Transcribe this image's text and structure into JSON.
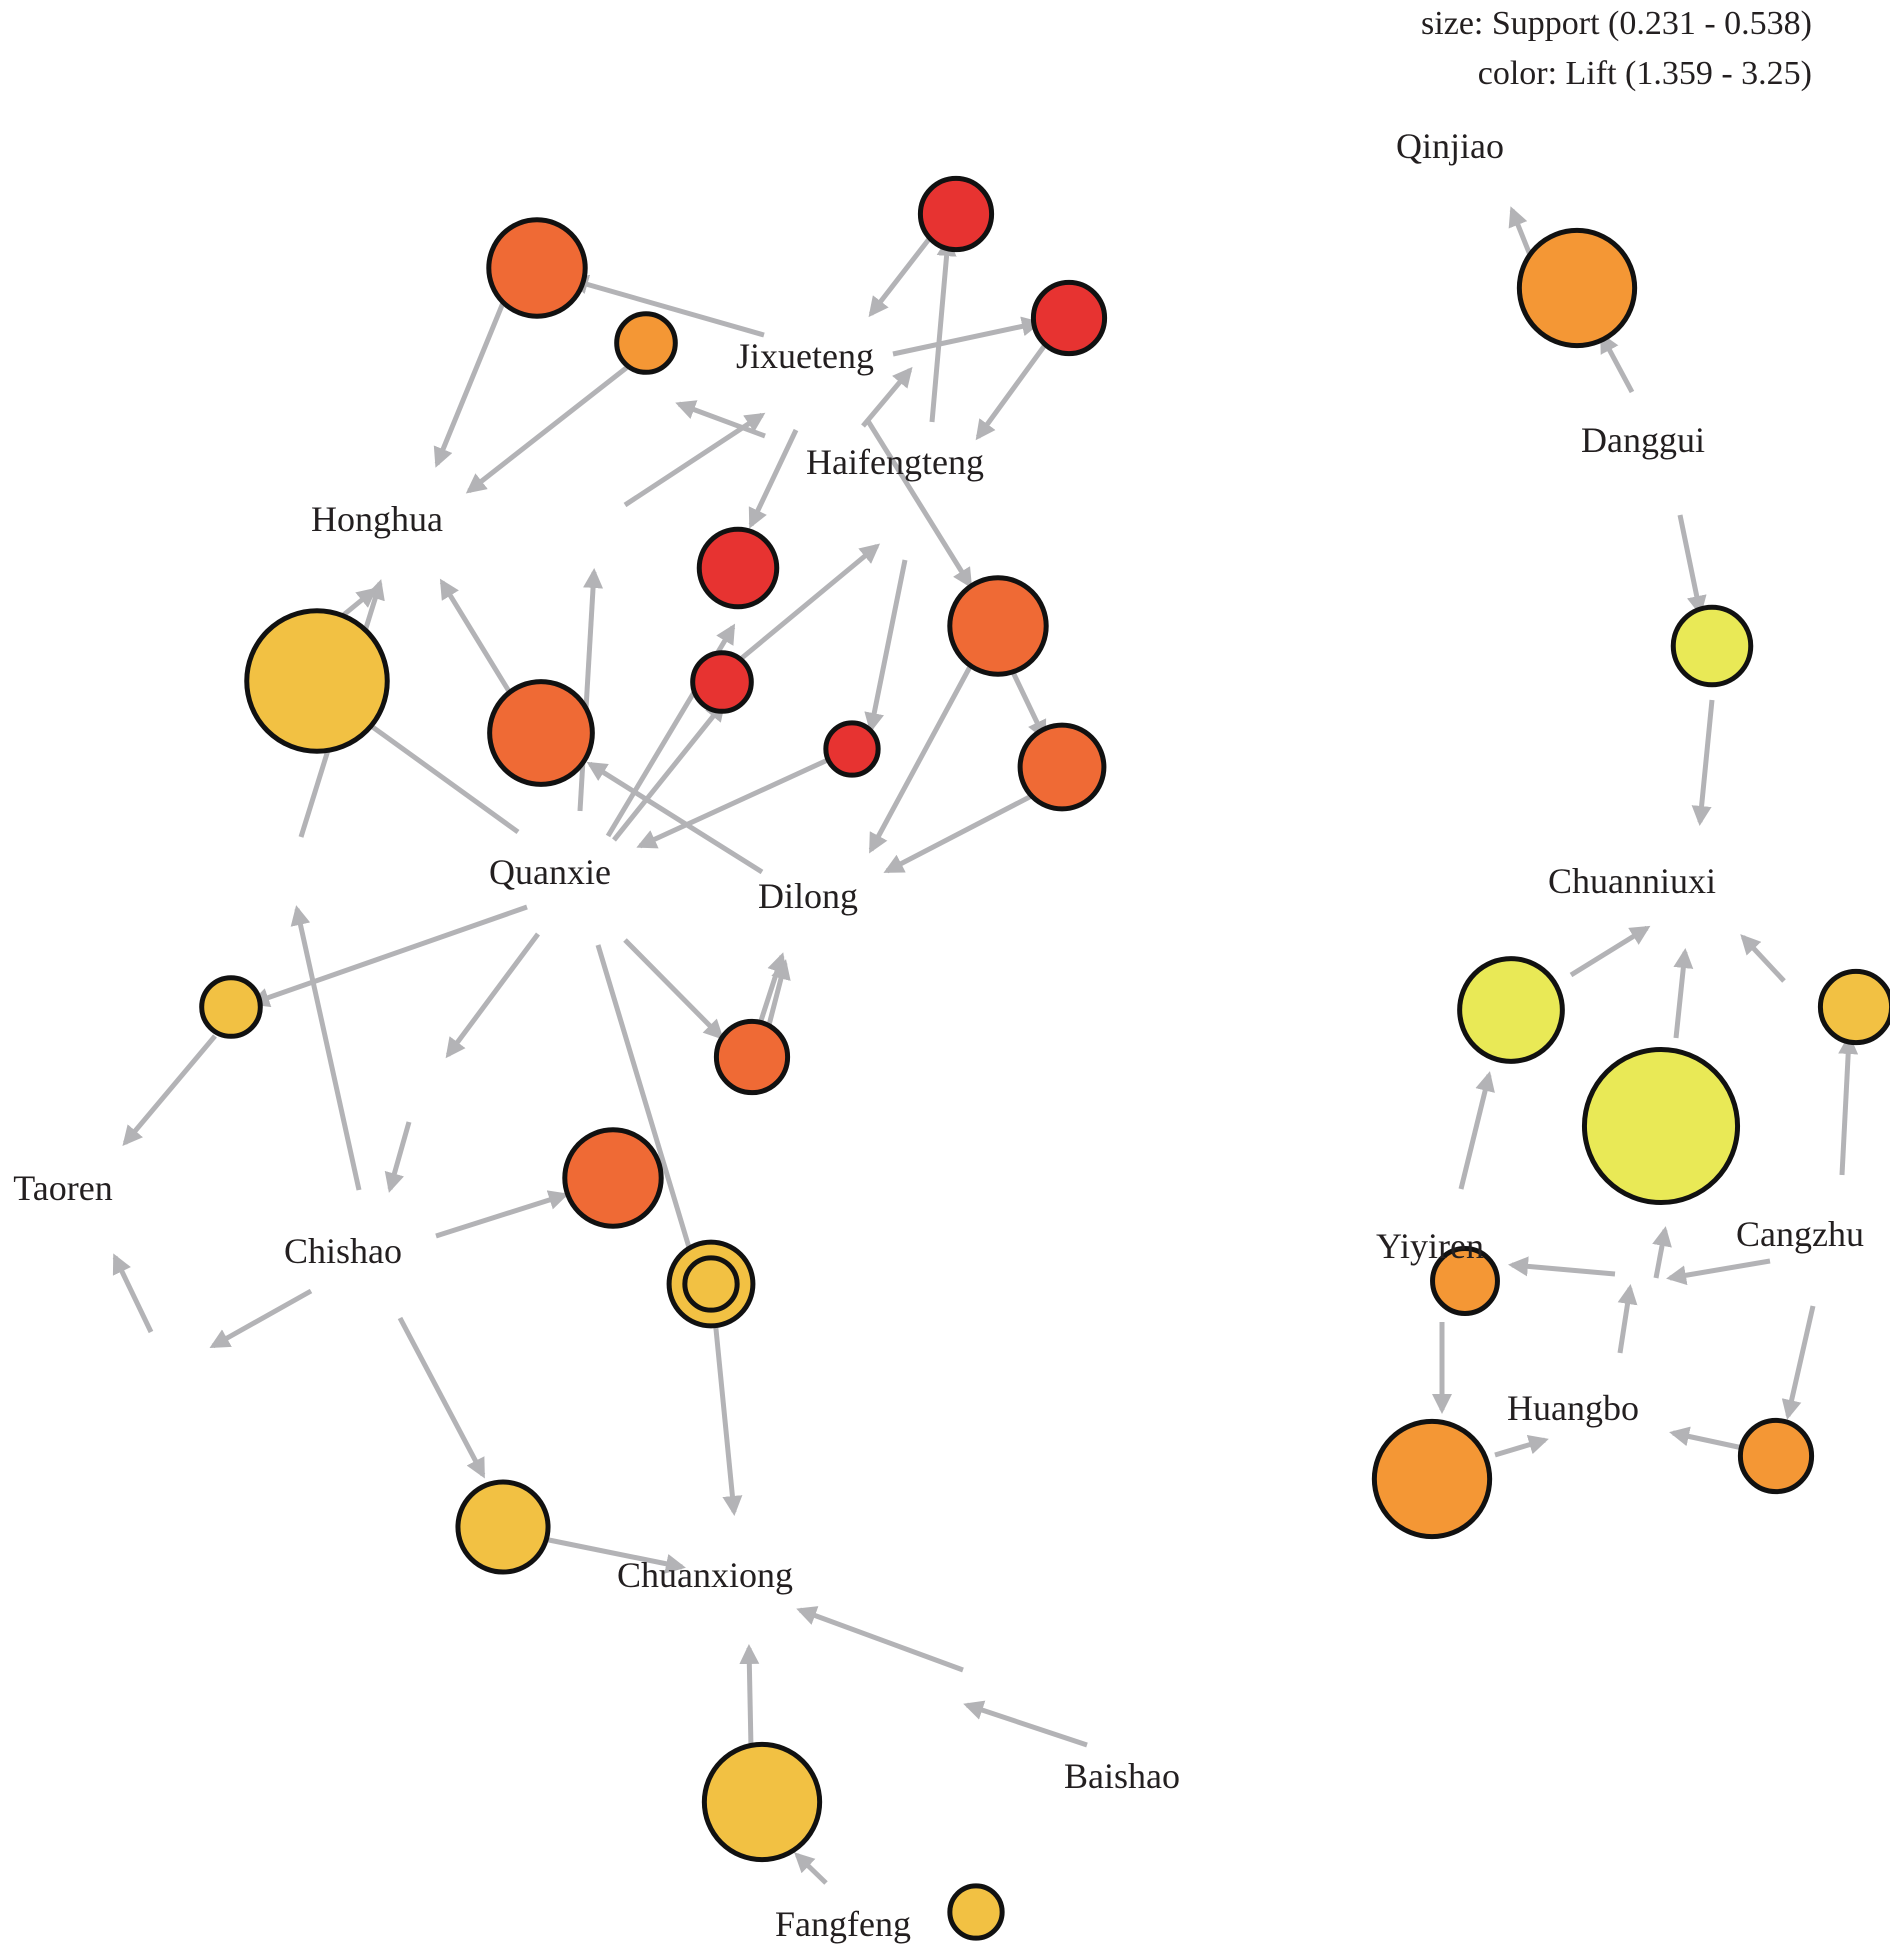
{
  "legend": {
    "size_text": "size: Support (0.231 - 0.538)",
    "color_text": "color: Lift (1.359 - 3.25)"
  },
  "colors": {
    "edge": "#b3b3b6",
    "node_stroke": "#111111",
    "lift_scale": [
      "#e9e956",
      "#f2c143",
      "#f49735",
      "#ef6a35",
      "#e73331"
    ]
  },
  "items": [
    "Qinjiao",
    "Danggui",
    "Chuanniuxi",
    "Yiyiren",
    "Cangzhu",
    "Huangbo",
    "Jixueteng",
    "Haifengteng",
    "Honghua",
    "Quanxie",
    "Dilong",
    "Taoren",
    "Chishao",
    "Chuanxiong",
    "Baishao",
    "Fangfeng"
  ],
  "rules": [
    {
      "id": "r1",
      "support_level": 0.55,
      "lift_level": 2
    },
    {
      "id": "r2",
      "support_level": 0.15,
      "lift_level": 2
    },
    {
      "id": "r3",
      "support_level": 0.2,
      "lift_level": 2
    },
    {
      "id": "r4",
      "support_level": 0.55,
      "lift_level": 2
    },
    {
      "id": "r5",
      "support_level": 0.6,
      "lift_level": 3
    },
    {
      "id": "r6",
      "support_level": 0.1,
      "lift_level": 2
    },
    {
      "id": "r7",
      "support_level": 0.2,
      "lift_level": 4
    },
    {
      "id": "r8",
      "support_level": 0.2,
      "lift_level": 4
    },
    {
      "id": "r9",
      "support_level": 0.4,
      "lift_level": 3
    },
    {
      "id": "r10",
      "support_level": 0.25,
      "lift_level": 4
    },
    {
      "id": "r11",
      "support_level": 0.1,
      "lift_level": 4
    },
    {
      "id": "r12",
      "support_level": 0.05,
      "lift_level": 4
    },
    {
      "id": "r13",
      "support_level": 0.3,
      "lift_level": 3
    },
    {
      "id": "r14",
      "support_level": 0.2,
      "lift_level": 3
    },
    {
      "id": "r15",
      "support_level": 0.45,
      "lift_level": 3
    },
    {
      "id": "r16",
      "support_level": 0.1,
      "lift_level": 2
    },
    {
      "id": "r17",
      "support_level": 0.4,
      "lift_level": 3
    },
    {
      "id": "r18",
      "support_level": 0.4,
      "lift_level": 3
    },
    {
      "id": "r19",
      "support_level": 0.05,
      "lift_level": 1
    },
    {
      "id": "r20",
      "support_level": 0.3,
      "lift_level": 1
    },
    {
      "id": "r21",
      "support_level": 0.55,
      "lift_level": 1
    },
    {
      "id": "r22",
      "support_level": 0.35,
      "lift_level": 1
    },
    {
      "id": "r23",
      "support_level": 0.25,
      "lift_level": 0
    },
    {
      "id": "r24",
      "support_level": 0.85,
      "lift_level": 0
    },
    {
      "id": "r25",
      "support_level": 0.45,
      "lift_level": 0
    },
    {
      "id": "r26",
      "support_level": 0.2,
      "lift_level": 1
    },
    {
      "id": "r27",
      "support_level": 0.1,
      "lift_level": 1
    },
    {
      "id": "r28",
      "support_level": 0.75,
      "lift_level": 1
    },
    {
      "id": "r29",
      "support_level": 0.05,
      "lift_level": 1
    }
  ]
}
